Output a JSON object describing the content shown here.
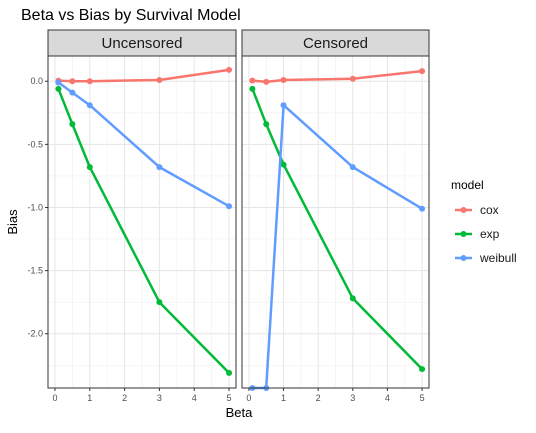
{
  "chart_data": {
    "type": "line",
    "title": "Beta vs Bias by Survival Model",
    "xlabel": "Beta",
    "ylabel": "Bias",
    "xlim": [
      -0.2,
      5.2
    ],
    "ylim": [
      -2.43,
      0.2
    ],
    "x_ticks": [
      0,
      1,
      2,
      3,
      4,
      5
    ],
    "y_ticks": [
      0.0,
      -0.5,
      -1.0,
      -1.5,
      -2.0
    ],
    "y_tick_labels": [
      "0.0",
      "-0.5",
      "-1.0",
      "-1.5",
      "-2.0"
    ],
    "grid": true,
    "legend": {
      "title": "model",
      "position": "right"
    },
    "colors": {
      "cox": "#F8766D",
      "exp": "#00BA38",
      "weibull": "#619CFF"
    },
    "panels": [
      {
        "label": "Uncensored",
        "series": [
          {
            "name": "cox",
            "x": [
              0.1,
              0.5,
              1,
              3,
              5
            ],
            "y": [
              0.005,
              0.0,
              0.0,
              0.01,
              0.09
            ]
          },
          {
            "name": "exp",
            "x": [
              0.1,
              0.5,
              1,
              3,
              5
            ],
            "y": [
              -0.06,
              -0.34,
              -0.68,
              -1.75,
              -2.31
            ]
          },
          {
            "name": "weibull",
            "x": [
              0.1,
              0.5,
              1,
              3,
              5
            ],
            "y": [
              -0.01,
              -0.09,
              -0.19,
              -0.68,
              -0.99
            ]
          }
        ]
      },
      {
        "label": "Censored",
        "series": [
          {
            "name": "cox",
            "x": [
              0.1,
              0.5,
              1,
              3,
              5
            ],
            "y": [
              0.005,
              -0.005,
              0.01,
              0.02,
              0.08
            ]
          },
          {
            "name": "exp",
            "x": [
              0.1,
              0.5,
              1,
              3,
              5
            ],
            "y": [
              -0.06,
              -0.34,
              -0.66,
              -1.72,
              -2.28
            ]
          },
          {
            "name": "weibull",
            "x": [
              0.1,
              0.5,
              1,
              3,
              5
            ],
            "y": [
              -2.43,
              -2.43,
              -0.19,
              -0.68,
              -1.01
            ]
          }
        ]
      }
    ]
  }
}
